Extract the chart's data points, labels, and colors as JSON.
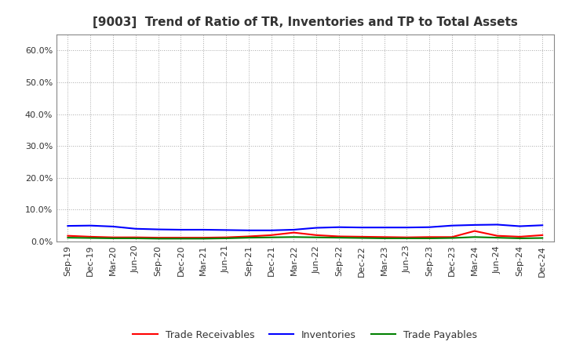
{
  "title": "[9003]  Trend of Ratio of TR, Inventories and TP to Total Assets",
  "x_labels": [
    "Sep-19",
    "Dec-19",
    "Mar-20",
    "Jun-20",
    "Sep-20",
    "Dec-20",
    "Mar-21",
    "Jun-21",
    "Sep-21",
    "Dec-21",
    "Mar-22",
    "Jun-22",
    "Sep-22",
    "Dec-22",
    "Mar-23",
    "Jun-23",
    "Sep-23",
    "Dec-23",
    "Mar-24",
    "Jun-24",
    "Sep-24",
    "Dec-24"
  ],
  "trade_receivables": [
    0.018,
    0.015,
    0.013,
    0.013,
    0.012,
    0.012,
    0.012,
    0.013,
    0.016,
    0.02,
    0.028,
    0.02,
    0.016,
    0.015,
    0.014,
    0.013,
    0.014,
    0.014,
    0.033,
    0.018,
    0.015,
    0.02
  ],
  "inventories": [
    0.049,
    0.05,
    0.047,
    0.04,
    0.038,
    0.037,
    0.037,
    0.036,
    0.035,
    0.035,
    0.037,
    0.043,
    0.045,
    0.044,
    0.044,
    0.044,
    0.045,
    0.05,
    0.052,
    0.053,
    0.048,
    0.051
  ],
  "trade_payables": [
    0.012,
    0.011,
    0.01,
    0.01,
    0.009,
    0.009,
    0.009,
    0.01,
    0.012,
    0.013,
    0.014,
    0.013,
    0.012,
    0.011,
    0.01,
    0.01,
    0.01,
    0.011,
    0.014,
    0.012,
    0.01,
    0.011
  ],
  "color_tr": "#ff0000",
  "color_inv": "#0000ff",
  "color_tp": "#008000",
  "ylim": [
    0.0,
    0.65
  ],
  "yticks": [
    0.0,
    0.1,
    0.2,
    0.3,
    0.4,
    0.5,
    0.6
  ],
  "background_color": "#ffffff",
  "grid_color": "#aaaaaa",
  "spine_color": "#888888",
  "title_fontsize": 11,
  "tick_fontsize": 8,
  "legend_fontsize": 9,
  "line_width": 1.5
}
